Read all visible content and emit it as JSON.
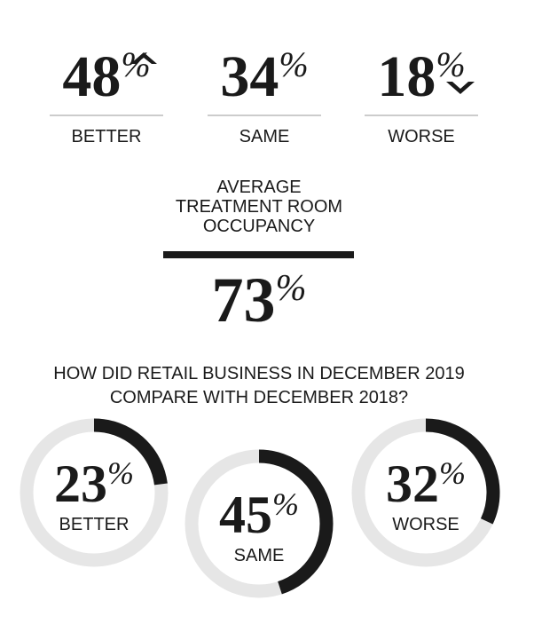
{
  "top_stats": [
    {
      "value": 48,
      "unit": "%",
      "label": "BETTER"
    },
    {
      "value": 34,
      "unit": "%",
      "label": "SAME"
    },
    {
      "value": 18,
      "unit": "%",
      "label": "WORSE"
    }
  ],
  "occupancy": {
    "title": [
      "AVERAGE",
      "TREATMENT ROOM",
      "OCCUPANCY"
    ],
    "value": 73,
    "unit": "%"
  },
  "retail": {
    "question": [
      "HOW DID RETAIL BUSINESS IN DECEMBER 2019",
      "COMPARE WITH DECEMBER 2018?"
    ],
    "items": [
      {
        "value": 23,
        "unit": "%",
        "label": "BETTER"
      },
      {
        "value": 45,
        "unit": "%",
        "label": "SAME"
      },
      {
        "value": 32,
        "unit": "%",
        "label": "WORSE"
      }
    ]
  }
}
